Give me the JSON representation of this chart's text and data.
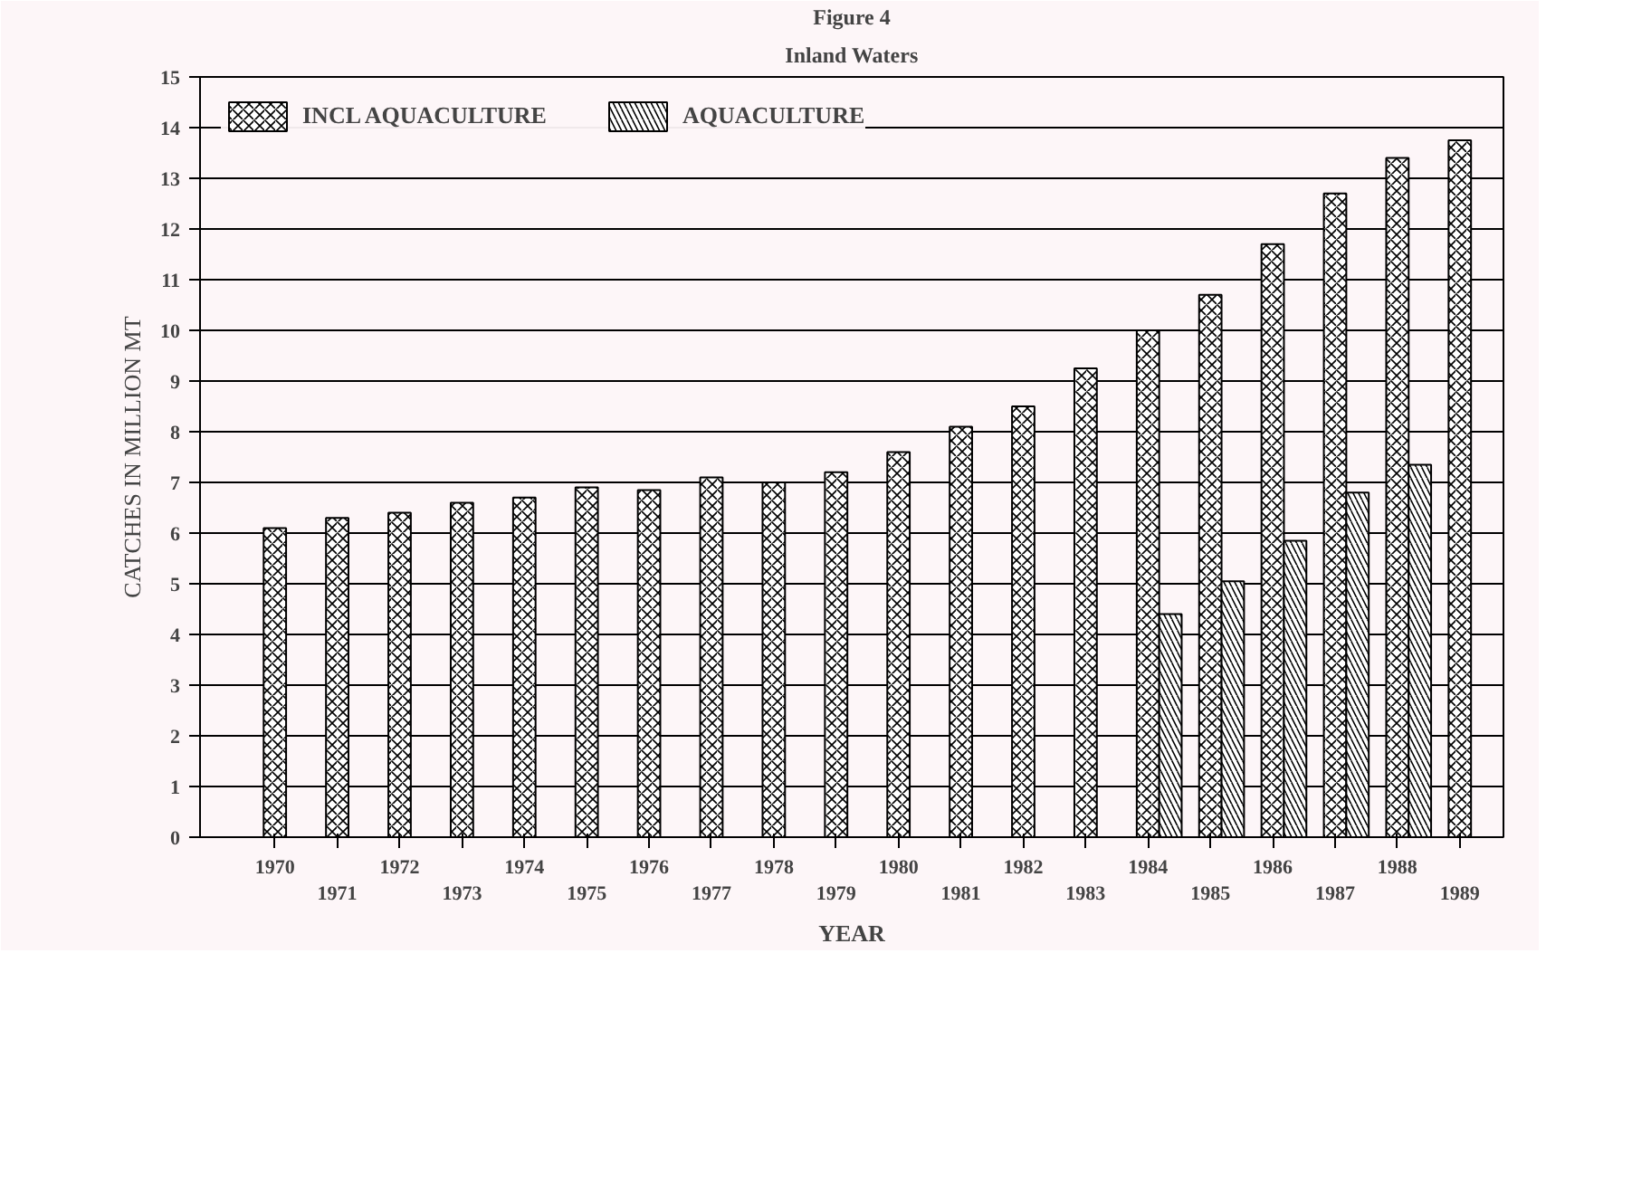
{
  "chart_data": {
    "type": "bar",
    "title": "Inland Waters",
    "annotations": [
      "Figure 4"
    ],
    "xlabel": "YEAR",
    "ylabel": "CATCHES IN MILLION MT",
    "categories": [
      "1970",
      "1971",
      "1972",
      "1973",
      "1974",
      "1975",
      "1976",
      "1977",
      "1978",
      "1979",
      "1980",
      "1981",
      "1982",
      "1983",
      "1984",
      "1985",
      "1986",
      "1987",
      "1988",
      "1989"
    ],
    "series": [
      {
        "name": "INCL AQUACULTURE",
        "color": "#ffffff",
        "values": [
          6.1,
          6.3,
          6.4,
          6.6,
          6.7,
          6.9,
          6.85,
          7.1,
          7.0,
          7.2,
          7.6,
          8.1,
          8.5,
          9.25,
          10.0,
          10.7,
          11.7,
          12.7,
          13.4,
          13.75
        ]
      },
      {
        "name": "AQUACULTURE",
        "color": "#ffffff",
        "values": [
          null,
          null,
          null,
          null,
          null,
          null,
          null,
          null,
          null,
          null,
          null,
          null,
          null,
          null,
          4.4,
          5.05,
          5.85,
          6.8,
          7.35,
          null
        ]
      }
    ],
    "ylim": [
      0,
      15
    ],
    "yticks": [
      0,
      1,
      2,
      3,
      4,
      5,
      6,
      7,
      8,
      9,
      10,
      11,
      12,
      13,
      14,
      15
    ],
    "grid": "y",
    "legend": "top left"
  }
}
